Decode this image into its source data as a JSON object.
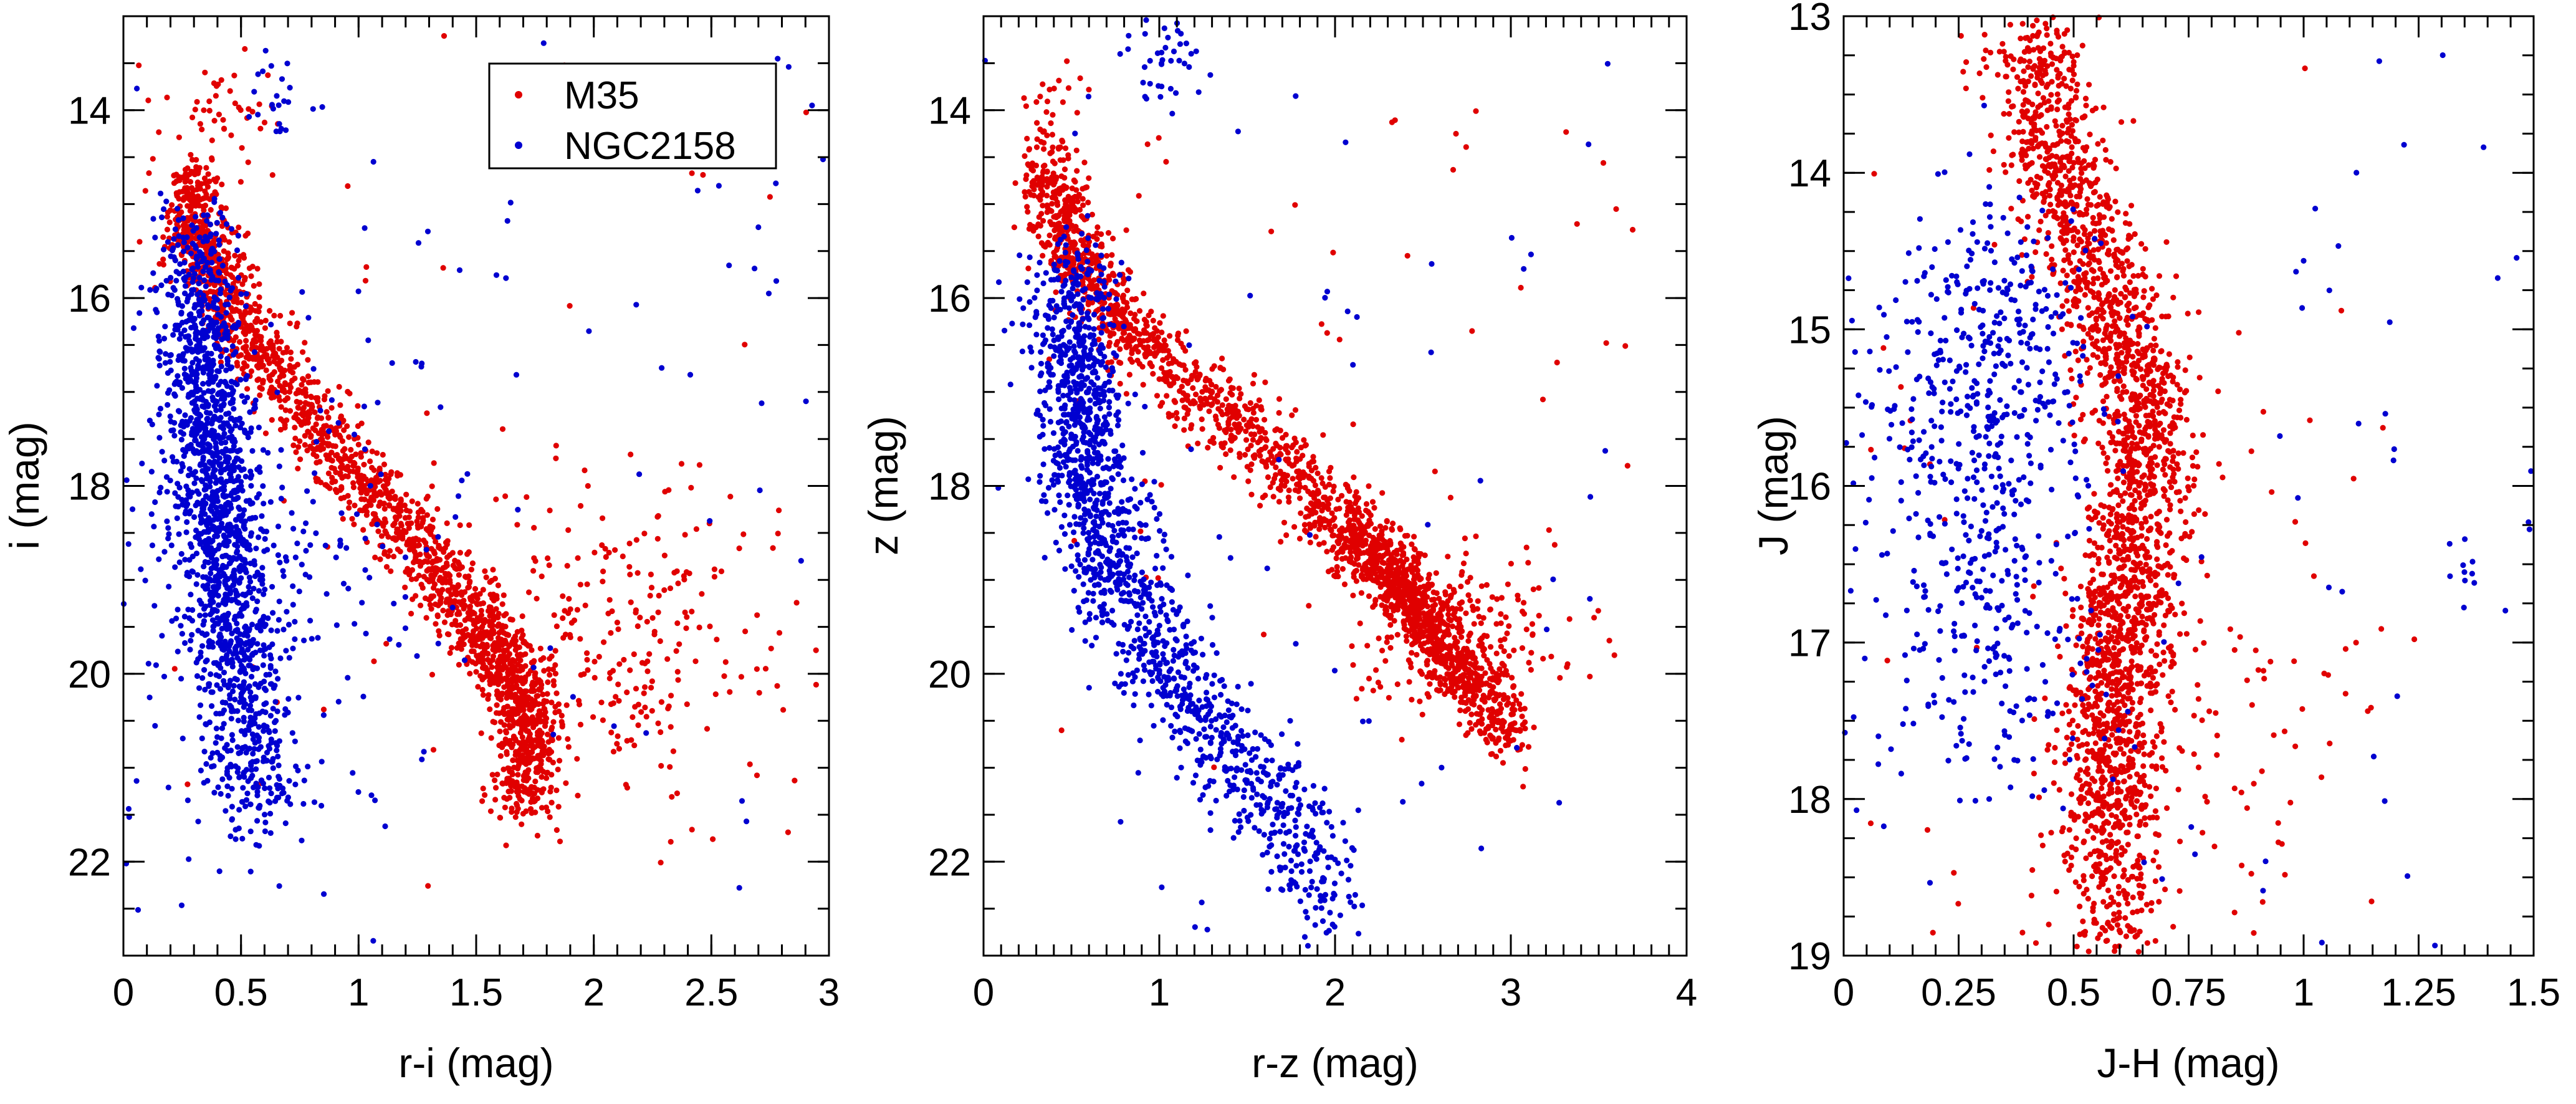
{
  "figure": {
    "description_text": ""
  },
  "colors": {
    "m35": "#e00000",
    "ngc2158": "#0000d0",
    "axes": "#000000"
  },
  "legend": {
    "placement": "top-right of first panel",
    "entries": [
      "M35",
      "NGC2158"
    ]
  },
  "chart_data": [
    {
      "type": "scatter",
      "xlabel": "r-i (mag)",
      "ylabel": "i (mag)",
      "xlim": [
        0,
        3
      ],
      "ylim": [
        23,
        13
      ],
      "y_inverted": true,
      "xticks": [
        0,
        0.5,
        1,
        1.5,
        2,
        2.5,
        3
      ],
      "xtick_labels": [
        "0",
        "0.5",
        "1",
        "1.5",
        "2",
        "2.5",
        "3"
      ],
      "x_minor_step": 0.1,
      "yticks": [
        14,
        16,
        18,
        20,
        22
      ],
      "ytick_labels": [
        "14",
        "16",
        "18",
        "20",
        "22"
      ],
      "y_minor_step": 0.5,
      "series": [
        {
          "name": "M35",
          "color_key": "m35",
          "count": 2100,
          "seed": 11,
          "sequence": [
            [
              0.27,
              14.7
            ],
            [
              0.32,
              15.3
            ],
            [
              0.4,
              15.8
            ],
            [
              0.52,
              16.4
            ],
            [
              0.7,
              17.0
            ],
            [
              0.9,
              17.6
            ],
            [
              1.1,
              18.2
            ],
            [
              1.3,
              18.8
            ],
            [
              1.5,
              19.5
            ],
            [
              1.7,
              20.2
            ],
            [
              1.72,
              20.8
            ],
            [
              1.7,
              21.5
            ]
          ],
          "weights": [
            1.5,
            1.7,
            1.5,
            1.5,
            1.3,
            1.2,
            1.2,
            1.5,
            2.4,
            2.6,
            1.5,
            1.0
          ],
          "spread_x": 0.07,
          "spread_y": 0.18,
          "clusters": [
            {
              "cx": 0.45,
              "cy": 14.0,
              "sx": 0.12,
              "sy": 0.3,
              "count": 45
            },
            {
              "cx": 2.15,
              "cy": 19.7,
              "sx": 0.32,
              "sy": 0.8,
              "count": 240
            }
          ],
          "field": {
            "x": [
              0.05,
              3.0
            ],
            "y": [
              13.2,
              22.3
            ],
            "count": 60
          }
        },
        {
          "name": "NGC2158",
          "color_key": "ngc2158",
          "count": 1550,
          "seed": 23,
          "sequence": [
            [
              0.3,
              15.3
            ],
            [
              0.33,
              16.2
            ],
            [
              0.35,
              17.0
            ],
            [
              0.38,
              17.8
            ],
            [
              0.42,
              18.6
            ],
            [
              0.46,
              19.4
            ],
            [
              0.5,
              20.2
            ],
            [
              0.55,
              21.0
            ],
            [
              0.6,
              21.5
            ]
          ],
          "weights": [
            0.8,
            1.5,
            1.7,
            1.8,
            1.6,
            1.4,
            1.2,
            0.8,
            0.5
          ],
          "spread_x": 0.09,
          "spread_y": 0.3,
          "clusters": [
            {
              "cx": 0.64,
              "cy": 13.9,
              "sx": 0.05,
              "sy": 0.2,
              "count": 20
            },
            {
              "cx": 0.55,
              "cy": 18.8,
              "sx": 0.35,
              "sy": 1.4,
              "count": 260
            }
          ],
          "field": {
            "x": [
              0.0,
              3.0
            ],
            "y": [
              13.2,
              22.3
            ],
            "count": 75
          }
        }
      ]
    },
    {
      "type": "scatter",
      "xlabel": "r-z (mag)",
      "ylabel": "z (mag)",
      "xlim": [
        0,
        4
      ],
      "ylim": [
        23,
        13
      ],
      "y_inverted": true,
      "xticks": [
        0,
        1,
        2,
        3,
        4
      ],
      "xtick_labels": [
        "0",
        "1",
        "2",
        "3",
        "4"
      ],
      "x_minor_step": 0.1,
      "yticks": [
        14,
        16,
        18,
        20,
        22
      ],
      "ytick_labels": [
        "14",
        "16",
        "18",
        "20",
        "22"
      ],
      "y_minor_step": 0.5,
      "series": [
        {
          "name": "M35",
          "color_key": "m35",
          "count": 2100,
          "seed": 37,
          "sequence": [
            [
              0.35,
              14.6
            ],
            [
              0.45,
              15.2
            ],
            [
              0.6,
              15.8
            ],
            [
              0.85,
              16.4
            ],
            [
              1.2,
              17.0
            ],
            [
              1.6,
              17.6
            ],
            [
              2.0,
              18.3
            ],
            [
              2.3,
              18.9
            ],
            [
              2.55,
              19.5
            ],
            [
              2.8,
              20.1
            ],
            [
              3.0,
              20.7
            ]
          ],
          "weights": [
            1.5,
            1.5,
            1.4,
            1.3,
            1.2,
            1.3,
            1.7,
            2.4,
            2.4,
            1.8,
            1.1
          ],
          "spread_x": 0.09,
          "spread_y": 0.2,
          "clusters": [
            {
              "cx": 0.4,
              "cy": 14.1,
              "sx": 0.08,
              "sy": 0.25,
              "count": 30
            },
            {
              "cx": 2.7,
              "cy": 19.6,
              "sx": 0.35,
              "sy": 0.45,
              "count": 180
            }
          ],
          "field": {
            "x": [
              0.3,
              3.7
            ],
            "y": [
              14.0,
              21.0
            ],
            "count": 60
          }
        },
        {
          "name": "NGC2158",
          "color_key": "ngc2158",
          "count": 1500,
          "seed": 53,
          "sequence": [
            [
              0.55,
              15.6
            ],
            [
              0.52,
              16.5
            ],
            [
              0.55,
              17.3
            ],
            [
              0.62,
              18.1
            ],
            [
              0.72,
              18.8
            ],
            [
              0.9,
              19.5
            ],
            [
              1.1,
              20.1
            ],
            [
              1.35,
              20.7
            ],
            [
              1.6,
              21.3
            ],
            [
              1.85,
              22.0
            ],
            [
              1.95,
              22.5
            ]
          ],
          "weights": [
            1.4,
            1.8,
            1.8,
            1.6,
            1.4,
            1.2,
            1.0,
            0.9,
            0.8,
            0.7,
            0.4
          ],
          "spread_x": 0.13,
          "spread_y": 0.25,
          "clusters": [
            {
              "cx": 1.05,
              "cy": 13.5,
              "sx": 0.1,
              "sy": 0.25,
              "count": 40
            }
          ],
          "field": {
            "x": [
              0.0,
              3.6
            ],
            "y": [
              13.2,
              22.8
            ],
            "count": 60
          }
        }
      ]
    },
    {
      "type": "scatter",
      "xlabel": "J-H (mag)",
      "ylabel": "J (mag)",
      "xlim": [
        0,
        1.5
      ],
      "ylim": [
        19,
        13
      ],
      "y_inverted": true,
      "xticks": [
        0,
        0.25,
        0.5,
        0.75,
        1,
        1.25,
        1.5
      ],
      "xtick_labels": [
        "0",
        "0.25",
        "0.5",
        "0.75",
        "1",
        "1.25",
        "1.5"
      ],
      "x_minor_step": 0.05,
      "yticks": [
        13,
        14,
        15,
        16,
        17,
        18,
        19
      ],
      "ytick_labels": [
        "13",
        "14",
        "15",
        "16",
        "17",
        "18",
        "19"
      ],
      "y_minor_step": 0.25,
      "series": [
        {
          "name": "M35",
          "color_key": "m35",
          "count": 2400,
          "seed": 71,
          "sequence": [
            [
              0.42,
              13.1
            ],
            [
              0.44,
              13.7
            ],
            [
              0.5,
              14.3
            ],
            [
              0.58,
              14.8
            ],
            [
              0.64,
              15.3
            ],
            [
              0.66,
              15.9
            ],
            [
              0.62,
              16.5
            ],
            [
              0.6,
              17.1
            ],
            [
              0.58,
              17.7
            ],
            [
              0.58,
              18.3
            ],
            [
              0.6,
              18.9
            ]
          ],
          "weights": [
            0.6,
            1.6,
            1.5,
            1.4,
            1.6,
            1.7,
            1.8,
            2.0,
            1.7,
            1.4,
            1.0
          ],
          "spread_x": 0.055,
          "spread_y": 0.12,
          "clusters": [
            {
              "cx": 0.8,
              "cy": 17.5,
              "sx": 0.18,
              "sy": 0.9,
              "count": 100
            }
          ],
          "field": {
            "x": [
              0.05,
              1.15
            ],
            "y": [
              13.2,
              19.0
            ],
            "count": 40
          }
        },
        {
          "name": "NGC2158",
          "color_key": "ngc2158",
          "count": 650,
          "seed": 89,
          "sequence": [
            [
              0.35,
              14.5
            ],
            [
              0.32,
              15.0
            ],
            [
              0.3,
              15.5
            ],
            [
              0.28,
              16.0
            ],
            [
              0.3,
              16.6
            ],
            [
              0.32,
              17.2
            ],
            [
              0.36,
              17.8
            ]
          ],
          "weights": [
            1.0,
            1.3,
            1.4,
            1.3,
            1.1,
            0.8,
            0.5
          ],
          "spread_x": 0.12,
          "spread_y": 0.3,
          "clusters": [
            {
              "cx": 1.4,
              "cy": 16.5,
              "sx": 0.07,
              "sy": 0.2,
              "count": 14
            }
          ],
          "field": {
            "x": [
              0.0,
              1.5
            ],
            "y": [
              13.0,
              19.0
            ],
            "count": 65
          }
        }
      ]
    }
  ]
}
